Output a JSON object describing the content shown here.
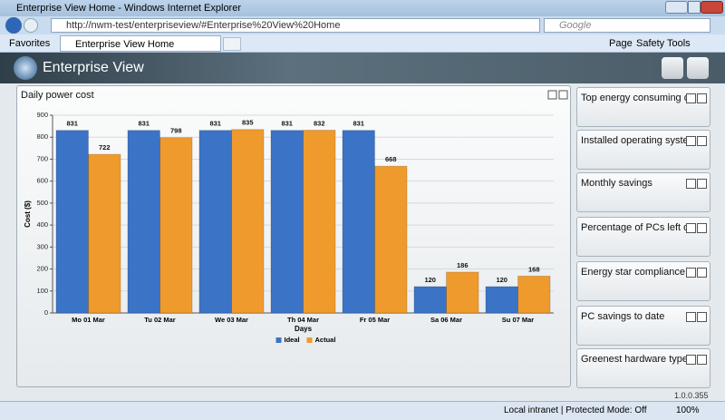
{
  "window": {
    "title": "Enterprise View Home - Windows Internet Explorer"
  },
  "browser": {
    "address": "http://nwm-test/enterpriseview/#Enterprise%20View%20Home",
    "search": "Google",
    "favorites": "Favorites",
    "tab": "Enterprise View Home",
    "menus": [
      "Page",
      "Safety",
      "Tools"
    ]
  },
  "app": {
    "title": "Enterprise View",
    "version": "1.0.0.355"
  },
  "widgets": [
    {
      "title": "Top energy consuming d..."
    },
    {
      "title": "Installed operating systems"
    },
    {
      "title": "Monthly savings"
    },
    {
      "title": "Percentage of PCs left on..."
    },
    {
      "title": "Energy star compliance"
    },
    {
      "title": "PC savings to date"
    },
    {
      "title": "Greenest hardware types"
    }
  ],
  "status": {
    "zone": "Local intranet | Protected Mode: Off",
    "zoom": "100%"
  },
  "chart_data": {
    "type": "bar",
    "title": "Daily power cost",
    "x_label": "Days",
    "y_label": "Cost ($)",
    "categories": [
      "Mo 01 Mar",
      "Tu 02 Mar",
      "We 03 Mar",
      "Th 04 Mar",
      "Fr 05 Mar",
      "Sa 06 Mar",
      "Su 07 Mar"
    ],
    "series": [
      {
        "name": "Ideal",
        "color": "#3b73c6",
        "values": [
          831,
          831,
          831,
          831,
          831,
          120,
          120
        ]
      },
      {
        "name": "Actual",
        "color": "#ef9a2c",
        "values": [
          722,
          798,
          835,
          832,
          668,
          186,
          168
        ]
      }
    ],
    "ylim": [
      0,
      900
    ],
    "yticks": [
      0,
      100,
      200,
      300,
      400,
      500,
      600,
      700,
      800,
      900
    ],
    "grid": true,
    "legend": "bottom"
  }
}
